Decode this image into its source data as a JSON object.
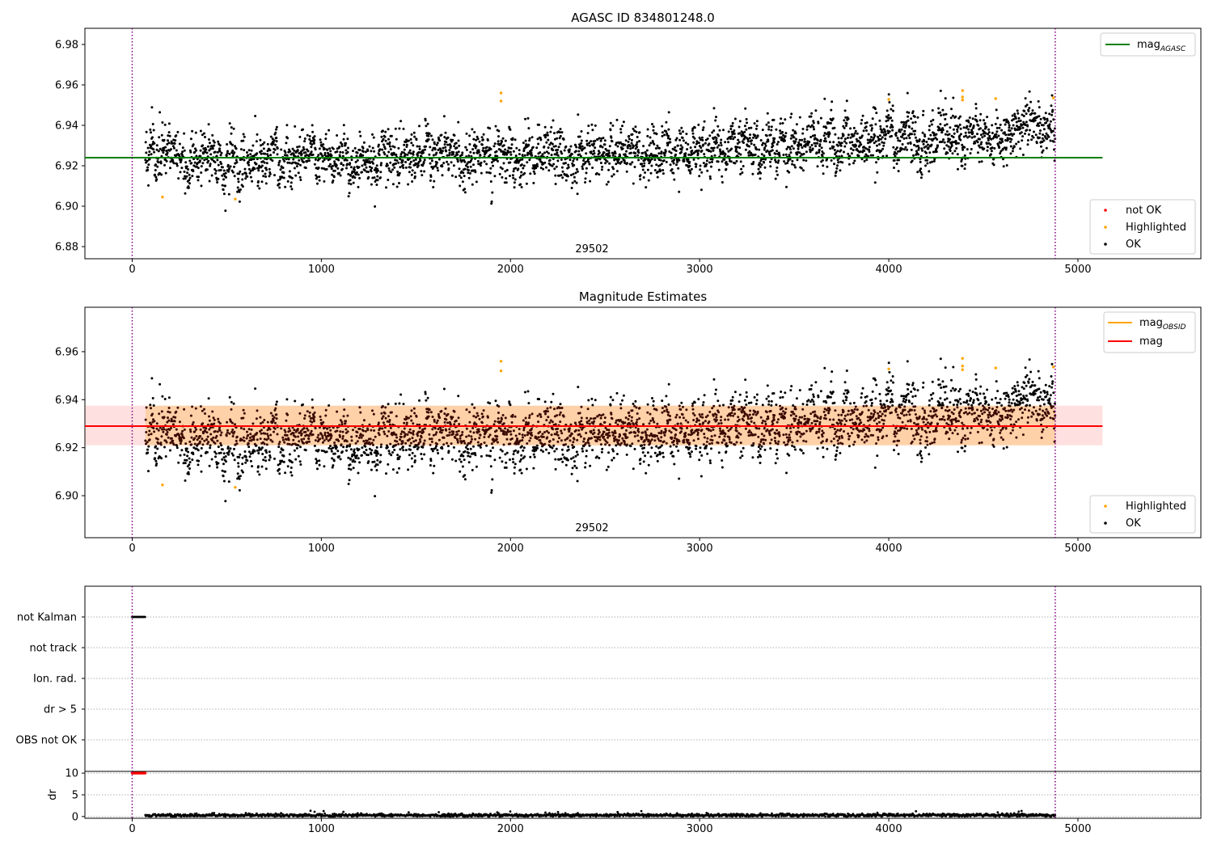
{
  "chart_data": [
    {
      "type": "scatter",
      "title": "AGASC ID 834801248.0",
      "xlim": [
        -250,
        5650
      ],
      "ylim": [
        6.874,
        6.988
      ],
      "xticks": [
        "0",
        "1000",
        "2000",
        "3000",
        "4000",
        "5000"
      ],
      "yticks": [
        "6.88",
        "6.90",
        "6.92",
        "6.94",
        "6.96",
        "6.98"
      ],
      "obsid_label": "29502",
      "obsid_bounds": [
        0,
        4880
      ],
      "series": [
        {
          "name": "mag_AGASC",
          "type": "hline",
          "value": 6.924,
          "x_range": [
            -250,
            5130
          ],
          "color": "#008000"
        },
        {
          "name": "not OK",
          "type": "scatter",
          "color": "#ff0000",
          "count": 0
        },
        {
          "name": "Highlighted",
          "type": "scatter",
          "color": "#ffa500",
          "points": [
            [
              160,
              6.9045
            ],
            [
              545,
              6.9035
            ],
            [
              1950,
              6.956
            ],
            [
              1950,
              6.952
            ],
            [
              4000,
              6.9528
            ],
            [
              4390,
              6.9572
            ],
            [
              4390,
              6.954
            ],
            [
              4390,
              6.9525
            ],
            [
              4565,
              6.9532
            ],
            [
              4870,
              6.9536
            ]
          ]
        },
        {
          "name": "OK",
          "type": "scatter",
          "color": "#000000",
          "x_range": [
            70,
            4880
          ],
          "trend": [
            [
              70,
              6.927
            ],
            [
              600,
              6.922
            ],
            [
              1500,
              6.924
            ],
            [
              2500,
              6.927
            ],
            [
              3500,
              6.932
            ],
            [
              4000,
              6.932
            ],
            [
              4880,
              6.938
            ]
          ],
          "noise_sd": 0.006
        }
      ],
      "legends": [
        {
          "position": "upper right",
          "entries": [
            "mag_AGASC"
          ]
        },
        {
          "position": "lower right",
          "entries": [
            "not OK",
            "Highlighted",
            "OK"
          ]
        }
      ]
    },
    {
      "type": "scatter",
      "title": "Magnitude Estimates",
      "xlim": [
        -250,
        5650
      ],
      "ylim": [
        6.8825,
        6.9785
      ],
      "xticks": [
        "0",
        "1000",
        "2000",
        "3000",
        "4000",
        "5000"
      ],
      "yticks": [
        "6.90",
        "6.92",
        "6.94",
        "6.96"
      ],
      "obsid_label": "29502",
      "obsid_bounds": [
        0,
        4880
      ],
      "series": [
        {
          "name": "mag_OBSID",
          "type": "hline",
          "value": 6.929,
          "band": [
            6.921,
            6.9375
          ],
          "x_range": [
            70,
            4880
          ],
          "color": "#ffa500"
        },
        {
          "name": "mag",
          "type": "hline",
          "value": 6.929,
          "band": [
            6.921,
            6.9375
          ],
          "x_range": [
            -250,
            5130
          ],
          "color": "#ff0000"
        },
        {
          "name": "Highlighted",
          "type": "scatter",
          "color": "#ffa500",
          "same_as": "panel1"
        },
        {
          "name": "OK",
          "type": "scatter",
          "color": "#000000",
          "same_as": "panel1"
        }
      ],
      "legends": [
        {
          "position": "upper right",
          "entries": [
            "mag_OBSID",
            "mag"
          ]
        },
        {
          "position": "lower right",
          "entries": [
            "Highlighted",
            "OK"
          ]
        }
      ]
    },
    {
      "type": "scatter",
      "title": "",
      "xlim": [
        -250,
        5650
      ],
      "categories": [
        "not Kalman",
        "not track",
        "Ion. rad.",
        "dr > 5",
        "OBS not OK"
      ],
      "flags": [
        {
          "category": "not Kalman",
          "x_range": [
            0,
            70
          ],
          "color": "#000000"
        }
      ],
      "obsid_bounds": [
        0,
        4880
      ]
    },
    {
      "type": "scatter",
      "title": "",
      "ylabel": "dr",
      "xlim": [
        -250,
        5650
      ],
      "ylim": [
        -0.4,
        10.4
      ],
      "xticks": [
        "0",
        "1000",
        "2000",
        "3000",
        "4000",
        "5000"
      ],
      "yticks": [
        "0",
        "5",
        "10"
      ],
      "series": [
        {
          "name": "dr",
          "color": "#000000",
          "x_range": [
            70,
            4880
          ],
          "typical": 0.3
        },
        {
          "name": "dr > 5",
          "color": "#ff0000",
          "x_range": [
            0,
            70
          ],
          "value": 10
        }
      ],
      "obsid_bounds": [
        0,
        4880
      ]
    }
  ],
  "legend_labels": {
    "mag_agasc_base": "mag",
    "mag_agasc_sub": "AGASC",
    "mag_obsid_base": "mag",
    "mag_obsid_sub": "OBSID",
    "mag": "mag",
    "not_ok": "not OK",
    "highlighted": "Highlighted",
    "ok": "OK"
  }
}
